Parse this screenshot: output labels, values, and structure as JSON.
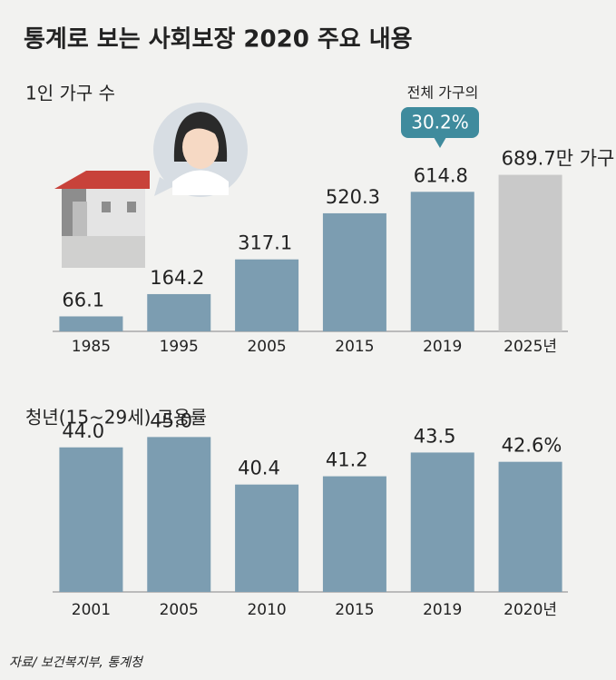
{
  "title": "통계로 보는 사회보장 2020 주요 내용",
  "source": "자료/ 보건복지부, 통계청",
  "chart_data": [
    {
      "type": "bar",
      "title": "1인 가구 수",
      "categories": [
        "1985",
        "1995",
        "2005",
        "2015",
        "2019",
        "2025년"
      ],
      "values": [
        66.1,
        164.2,
        317.1,
        520.3,
        614.8,
        689.7
      ],
      "value_labels": [
        "66.1",
        "164.2",
        "317.1",
        "520.3",
        "614.8",
        "689.7만 가구"
      ],
      "colors": [
        "#7c9db1",
        "#7c9db1",
        "#7c9db1",
        "#7c9db1",
        "#7c9db1",
        "#c9c9c9"
      ],
      "ylim": [
        0,
        700
      ],
      "annotation": {
        "text": "전체 가구의",
        "value_label": "30.2%"
      }
    },
    {
      "type": "bar",
      "title": "청년(15~29세) 고용률",
      "categories": [
        "2001",
        "2005",
        "2010",
        "2015",
        "2019",
        "2020년"
      ],
      "values": [
        44.0,
        45.0,
        40.4,
        41.2,
        43.5,
        42.6
      ],
      "value_labels": [
        "44.0",
        "45.0",
        "40.4",
        "41.2",
        "43.5",
        "42.6%"
      ],
      "colors": [
        "#7c9db1",
        "#7c9db1",
        "#7c9db1",
        "#7c9db1",
        "#7c9db1",
        "#7c9db1"
      ],
      "ylim": [
        30,
        46
      ]
    }
  ]
}
